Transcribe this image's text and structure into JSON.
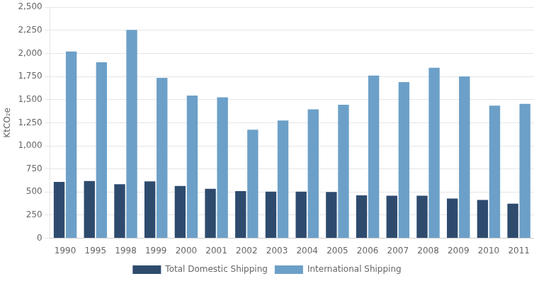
{
  "chart_data": {
    "type": "bar",
    "categories": [
      "1990",
      "1995",
      "1998",
      "1999",
      "2000",
      "2001",
      "2002",
      "2003",
      "2004",
      "2005",
      "2006",
      "2007",
      "2008",
      "2009",
      "2010",
      "2011"
    ],
    "series": [
      {
        "name": "Total Domestic Shipping",
        "color": "#2E4B6E",
        "values": [
          610,
          620,
          585,
          615,
          565,
          535,
          510,
          505,
          505,
          500,
          465,
          460,
          460,
          430,
          415,
          375
        ]
      },
      {
        "name": "International Shipping",
        "color": "#6CA0C8",
        "values": [
          2020,
          1905,
          2255,
          1735,
          1545,
          1525,
          1175,
          1275,
          1395,
          1445,
          1760,
          1690,
          1845,
          1750,
          1435,
          1455
        ]
      }
    ],
    "ylabel": "KtCO₂e",
    "ylim": [
      0,
      2500
    ],
    "yticks": [
      0,
      250,
      500,
      750,
      {
        "value": 1000,
        "label": "1,000"
      },
      {
        "value": 1250,
        "label": "1,250"
      },
      {
        "value": 1500,
        "label": "1,500"
      },
      {
        "value": 1750,
        "label": "1,750"
      },
      {
        "value": 2000,
        "label": "2,000"
      },
      {
        "value": 2250,
        "label": "2,250"
      },
      {
        "value": 2500,
        "label": "2,500"
      }
    ],
    "grid": true,
    "legend": "bottom"
  }
}
